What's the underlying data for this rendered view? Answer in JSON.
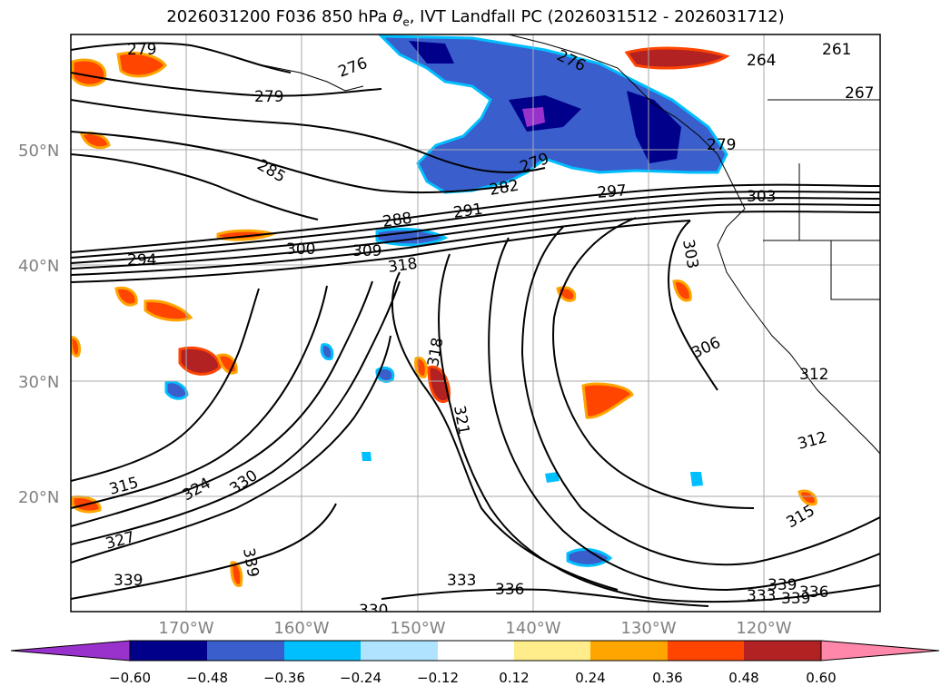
{
  "title": {
    "prefix": "2026031200 F036 850 hPa ",
    "symbol": "θ",
    "symbol_sub": "e",
    "suffix": ", IVT Landfall PC (2026031512 - 2026031712)"
  },
  "axes": {
    "lat_labels": [
      "50°N",
      "40°N",
      "30°N",
      "20°N"
    ],
    "lon_labels": [
      "170°W",
      "160°W",
      "150°W",
      "140°W",
      "130°W",
      "120°W"
    ],
    "grid": true,
    "tick_color": "#808080"
  },
  "colorbar": {
    "extend": "both",
    "ticks": [
      "−0.60",
      "−0.48",
      "−0.36",
      "−0.24",
      "−0.12",
      "0.12",
      "0.24",
      "0.36",
      "0.48",
      "0.60"
    ],
    "colors": [
      "#9932cc",
      "#00008b",
      "#3a5fcd",
      "#00bfff",
      "#afe3ff",
      "#ffffff",
      "#ffec8b",
      "#ffa500",
      "#ff4500",
      "#b22222",
      "#ff88aa"
    ]
  },
  "theta_e_contour_labels": [
    "279",
    "276",
    "279",
    "285",
    "279",
    "282",
    "288",
    "291",
    "297",
    "303",
    "279",
    "264",
    "267",
    "261",
    "294",
    "300",
    "309",
    "318",
    "303",
    "306",
    "315",
    "324",
    "330",
    "327",
    "339",
    "339",
    "318",
    "321",
    "333",
    "336",
    "312",
    "312",
    "315",
    "339",
    "333",
    "336",
    "339",
    "330",
    "276"
  ],
  "land_color": "#ffffff",
  "contour_color": "#000000"
}
